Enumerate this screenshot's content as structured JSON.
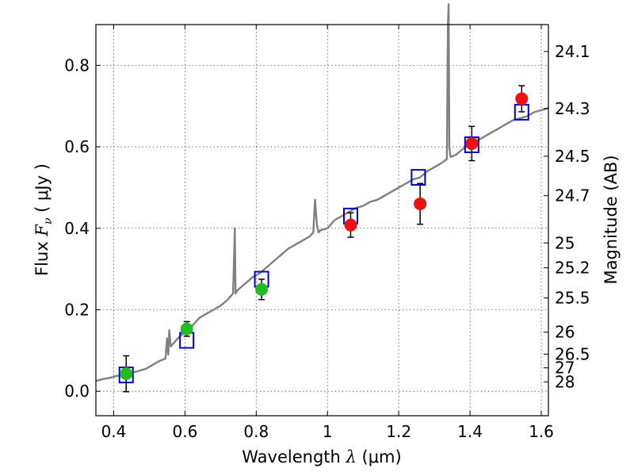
{
  "chart_data": {
    "type": "scatter",
    "xlabel": "Wavelength  λ (μm)",
    "ylabel": "Flux  Fν  ( μJy )",
    "ylabel_parts": {
      "pre": "Flux  ",
      "sym": "F",
      "sub": "ν",
      "post": "  ( μJy )"
    },
    "xlabel_parts": {
      "pre": "Wavelength  ",
      "sym": "λ",
      "post": " (μm)"
    },
    "y2label": "Magnitude (AB)",
    "xlim": [
      0.35,
      1.62
    ],
    "ylim": [
      -0.06,
      0.9
    ],
    "grid": true,
    "x_ticks": [
      0.4,
      0.6,
      0.8,
      1.0,
      1.2,
      1.4,
      1.6
    ],
    "x_tick_labels": [
      "0.4",
      "0.6",
      "0.8",
      "1",
      "1.2",
      "1.4",
      "1.6"
    ],
    "y_ticks": [
      0.0,
      0.2,
      0.4,
      0.6,
      0.8
    ],
    "y_tick_labels": [
      "0.0",
      "0.2",
      "0.4",
      "0.6",
      "0.8"
    ],
    "y2_ticks": [
      {
        "label": "24.1",
        "flux": 0.834
      },
      {
        "label": "24.3",
        "flux": 0.694
      },
      {
        "label": "24.5",
        "flux": 0.577
      },
      {
        "label": "24.7",
        "flux": 0.48
      },
      {
        "label": "25",
        "flux": 0.364
      },
      {
        "label": "25.2",
        "flux": 0.303
      },
      {
        "label": "25.5",
        "flux": 0.229
      },
      {
        "label": "26",
        "flux": 0.145
      },
      {
        "label": "26.5",
        "flux": 0.0912
      },
      {
        "label": "27",
        "flux": 0.0575
      },
      {
        "label": "28",
        "flux": 0.0229
      }
    ],
    "colors": {
      "spectrum": "#808080",
      "model": "#0000cc",
      "green": "#22bb22",
      "red": "#ee1111",
      "errorbar": "#000000",
      "grid": "#555555"
    },
    "series": [
      {
        "kind": "spectrum",
        "x": [
          0.35,
          0.37,
          0.39,
          0.41,
          0.43,
          0.45,
          0.47,
          0.49,
          0.51,
          0.53,
          0.545,
          0.55,
          0.553,
          0.556,
          0.56,
          0.58,
          0.6,
          0.62,
          0.64,
          0.66,
          0.68,
          0.7,
          0.72,
          0.735,
          0.74,
          0.742,
          0.745,
          0.75,
          0.77,
          0.79,
          0.81,
          0.83,
          0.85,
          0.87,
          0.89,
          0.91,
          0.93,
          0.95,
          0.96,
          0.965,
          0.97,
          0.975,
          0.98,
          1.0,
          1.02,
          1.04,
          1.06,
          1.08,
          1.1,
          1.12,
          1.14,
          1.16,
          1.18,
          1.2,
          1.22,
          1.24,
          1.26,
          1.28,
          1.3,
          1.32,
          1.335,
          1.338,
          1.34,
          1.342,
          1.345,
          1.36,
          1.38,
          1.4,
          1.42,
          1.44,
          1.46,
          1.48,
          1.5,
          1.52,
          1.54,
          1.56,
          1.58,
          1.6,
          1.62
        ],
        "y": [
          0.025,
          0.03,
          0.033,
          0.038,
          0.04,
          0.045,
          0.05,
          0.055,
          0.065,
          0.075,
          0.08,
          0.13,
          0.09,
          0.15,
          0.11,
          0.13,
          0.145,
          0.16,
          0.18,
          0.19,
          0.2,
          0.21,
          0.225,
          0.24,
          0.4,
          0.24,
          0.245,
          0.25,
          0.265,
          0.28,
          0.29,
          0.305,
          0.32,
          0.335,
          0.35,
          0.36,
          0.37,
          0.38,
          0.39,
          0.47,
          0.41,
          0.39,
          0.395,
          0.4,
          0.42,
          0.43,
          0.44,
          0.45,
          0.455,
          0.465,
          0.47,
          0.48,
          0.49,
          0.5,
          0.51,
          0.52,
          0.525,
          0.54,
          0.55,
          0.56,
          0.57,
          0.9,
          0.95,
          0.6,
          0.575,
          0.58,
          0.595,
          0.605,
          0.615,
          0.625,
          0.635,
          0.645,
          0.655,
          0.665,
          0.67,
          0.675,
          0.685,
          0.69,
          0.695
        ]
      },
      {
        "kind": "model",
        "marker": "square",
        "x": [
          0.435,
          0.605,
          0.815,
          1.065,
          1.255,
          1.405,
          1.545
        ],
        "y": [
          0.04,
          0.125,
          0.275,
          0.43,
          0.525,
          0.605,
          0.685
        ]
      },
      {
        "kind": "observed",
        "marker": "circle",
        "color": "green",
        "x": [
          0.435,
          0.605,
          0.815
        ],
        "y": [
          0.043,
          0.153,
          0.25
        ],
        "yerr": [
          0.044,
          0.018,
          0.025
        ]
      },
      {
        "kind": "observed",
        "marker": "circle",
        "color": "red",
        "x": [
          1.065,
          1.26,
          1.405,
          1.545
        ],
        "y": [
          0.408,
          0.46,
          0.608,
          0.718
        ],
        "yerr": [
          0.03,
          0.05,
          0.042,
          0.032
        ]
      }
    ]
  }
}
